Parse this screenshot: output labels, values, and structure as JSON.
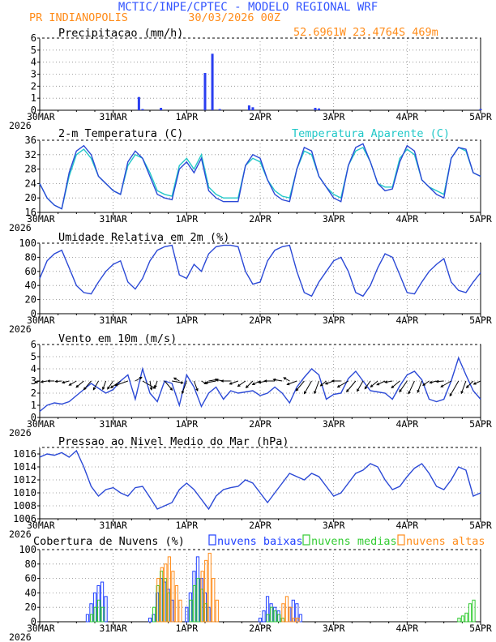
{
  "header": {
    "title": "MCTIC/INPE/CPTEC - MODELO REGIONAL WRF",
    "location": "PR INDIANOPOLIS",
    "run": "30/03/2026 00Z",
    "coords": "52.6961W 23.4764S 469m"
  },
  "colors": {
    "title": "#3355ff",
    "orange": "#ff8c1a",
    "cyan": "#22c8c8",
    "line": "#2b49d6",
    "bar": "#2a3ef0",
    "low": "#2040ff",
    "mid": "#33cc33",
    "high": "#ff8c1a"
  },
  "x_labels": [
    "30MAR",
    "31MAR",
    "1APR",
    "2APR",
    "3APR",
    "4APR",
    "5APR"
  ],
  "year_label": "2026",
  "chart_data": [
    {
      "id": "precip",
      "type": "bar",
      "title": "Precipitacao (mm/h)",
      "ylim": [
        0,
        6
      ],
      "yticks": [
        0,
        1,
        2,
        3,
        4,
        5,
        6
      ],
      "x": [
        27,
        28,
        33,
        45,
        47,
        49,
        57,
        58,
        75,
        76,
        120
      ],
      "values": [
        1.1,
        0.1,
        0.2,
        3.1,
        4.7,
        0.1,
        0.4,
        0.25,
        0.2,
        0.15,
        0.1
      ]
    },
    {
      "id": "temp",
      "type": "line",
      "title": "2-m Temperatura (C)",
      "legend": "Temperatura Aparente (C)",
      "ylim": [
        16,
        36
      ],
      "yticks": [
        16,
        20,
        24,
        28,
        32,
        36
      ],
      "x": [
        0,
        2,
        4,
        6,
        8,
        10,
        12,
        14,
        16,
        18,
        20,
        22,
        24,
        26,
        28,
        30,
        32,
        34,
        36,
        38,
        40,
        42,
        44,
        46,
        48,
        50,
        52,
        54,
        56,
        58,
        60,
        62,
        64,
        66,
        68,
        70,
        72,
        74,
        76,
        78,
        80,
        82,
        84,
        86,
        88,
        90,
        92,
        94,
        96,
        98,
        100,
        102,
        104,
        106,
        108,
        110,
        112,
        114,
        116,
        118,
        120
      ],
      "series": [
        {
          "name": "2-m Temperatura",
          "values": [
            24,
            20,
            18,
            17,
            27,
            33,
            34.5,
            32,
            26,
            24,
            22,
            21,
            30,
            33,
            31,
            26,
            21,
            20,
            19.5,
            28,
            30,
            27,
            31,
            22,
            20,
            19,
            19,
            19,
            29,
            32,
            31,
            25,
            21,
            19.5,
            19,
            28,
            34,
            33,
            26,
            23,
            20,
            19,
            29,
            34,
            35,
            30,
            24,
            22,
            22.5,
            30,
            34.5,
            33,
            25,
            23,
            21,
            20,
            31,
            34,
            33.5,
            27,
            26
          ]
        },
        {
          "name": "Temperatura Aparente",
          "values": [
            24,
            20,
            18,
            17,
            26,
            32,
            33.5,
            31,
            26,
            24,
            22,
            21,
            29,
            32,
            31,
            27,
            22,
            21,
            20.5,
            29,
            31,
            28,
            32,
            23,
            21,
            20,
            20,
            20,
            29,
            31,
            30,
            25,
            22,
            20.5,
            20,
            28,
            33,
            32,
            26,
            23,
            21,
            20,
            29,
            33,
            34,
            30,
            24,
            23,
            23,
            31,
            33.5,
            32,
            25,
            23,
            22,
            21,
            31,
            34,
            33,
            27,
            26
          ]
        }
      ]
    },
    {
      "id": "rh",
      "type": "line",
      "title": "Umidade Relativa em 2m (%)",
      "ylim": [
        0,
        100
      ],
      "yticks": [
        0,
        20,
        40,
        60,
        80,
        100
      ],
      "x": [
        0,
        2,
        4,
        6,
        8,
        10,
        12,
        14,
        16,
        18,
        20,
        22,
        24,
        26,
        28,
        30,
        32,
        34,
        36,
        38,
        40,
        42,
        44,
        46,
        48,
        50,
        52,
        54,
        56,
        58,
        60,
        62,
        64,
        66,
        68,
        70,
        72,
        74,
        76,
        78,
        80,
        82,
        84,
        86,
        88,
        90,
        92,
        94,
        96,
        98,
        100,
        102,
        104,
        106,
        108,
        110,
        112,
        114,
        116,
        118,
        120
      ],
      "series": [
        {
          "name": "Umidade Relativa",
          "values": [
            50,
            75,
            85,
            90,
            65,
            40,
            30,
            28,
            45,
            60,
            70,
            75,
            45,
            35,
            50,
            75,
            90,
            95,
            97,
            55,
            50,
            70,
            60,
            85,
            95,
            97,
            97,
            95,
            60,
            42,
            45,
            75,
            90,
            95,
            97,
            60,
            30,
            25,
            45,
            60,
            75,
            80,
            60,
            30,
            25,
            40,
            65,
            85,
            80,
            55,
            30,
            28,
            45,
            60,
            70,
            78,
            45,
            33,
            30,
            45,
            58
          ]
        }
      ]
    },
    {
      "id": "wind",
      "type": "line",
      "title": "Vento em 10m (m/s)",
      "ylim": [
        0,
        6
      ],
      "yticks": [
        0,
        1,
        2,
        3,
        4,
        5,
        6
      ],
      "x": [
        0,
        2,
        4,
        6,
        8,
        10,
        12,
        14,
        16,
        18,
        20,
        22,
        24,
        26,
        28,
        30,
        32,
        34,
        36,
        38,
        40,
        42,
        44,
        46,
        48,
        50,
        52,
        54,
        56,
        58,
        60,
        62,
        64,
        66,
        68,
        70,
        72,
        74,
        76,
        78,
        80,
        82,
        84,
        86,
        88,
        90,
        92,
        94,
        96,
        98,
        100,
        102,
        104,
        106,
        108,
        110,
        112,
        114,
        116,
        118,
        120
      ],
      "series": [
        {
          "name": "Velocidade",
          "values": [
            0.5,
            1,
            1.2,
            1.1,
            1.3,
            1.8,
            2.3,
            2.8,
            2.4,
            2,
            2.3,
            3,
            3.5,
            1.5,
            4,
            2,
            1.3,
            3,
            2.8,
            1,
            3.5,
            2.5,
            0.9,
            2,
            2.5,
            1.5,
            2.2,
            2,
            2.1,
            2.2,
            1.8,
            2,
            2.5,
            2,
            1.2,
            2.5,
            3.3,
            4,
            3.5,
            1.5,
            1.9,
            2,
            3.2,
            3.8,
            3,
            2.2,
            2.1,
            2,
            1.5,
            2.6,
            3.5,
            3.8,
            3.1,
            1.5,
            1.3,
            1.5,
            3,
            4.9,
            3.5,
            2.2,
            1.5
          ]
        }
      ],
      "arrow_dirs": [
        250,
        260,
        270,
        265,
        255,
        240,
        230,
        220,
        210,
        200,
        215,
        235,
        250,
        60,
        120,
        170,
        200,
        140,
        100,
        300,
        200,
        160,
        120,
        80,
        260,
        280,
        270,
        250,
        235,
        225,
        245,
        260,
        270,
        280,
        300,
        250,
        220,
        210,
        200,
        230,
        250,
        270,
        240,
        220,
        210,
        215,
        230,
        245,
        260,
        230,
        215,
        205,
        200,
        235,
        255,
        265,
        240,
        210,
        200,
        225,
        245
      ]
    },
    {
      "id": "slp",
      "type": "line",
      "title": "Pressao ao Nivel Medio do Mar (hPa)",
      "ylim": [
        1006,
        1017
      ],
      "yticks": [
        1006,
        1008,
        1010,
        1012,
        1014,
        1016
      ],
      "x": [
        0,
        2,
        4,
        6,
        8,
        10,
        12,
        14,
        16,
        18,
        20,
        22,
        24,
        26,
        28,
        30,
        32,
        34,
        36,
        38,
        40,
        42,
        44,
        46,
        48,
        50,
        52,
        54,
        56,
        58,
        60,
        62,
        64,
        66,
        68,
        70,
        72,
        74,
        76,
        78,
        80,
        82,
        84,
        86,
        88,
        90,
        92,
        94,
        96,
        98,
        100,
        102,
        104,
        106,
        108,
        110,
        112,
        114,
        116,
        118,
        120
      ],
      "series": [
        {
          "name": "PNMM",
          "values": [
            1015.5,
            1016,
            1015.8,
            1016.2,
            1015.5,
            1016.5,
            1014,
            1011,
            1009.5,
            1010.5,
            1010.8,
            1010,
            1009.5,
            1010.8,
            1011,
            1009.3,
            1007.5,
            1008,
            1008.5,
            1010.5,
            1011.5,
            1010.5,
            1009,
            1007.5,
            1009.5,
            1010.5,
            1010.8,
            1011,
            1012,
            1011.5,
            1010,
            1008.5,
            1010,
            1011.5,
            1013,
            1012.5,
            1012,
            1013,
            1012.5,
            1011,
            1009.5,
            1010,
            1011.5,
            1013,
            1013.5,
            1014.5,
            1014,
            1012,
            1010.5,
            1011,
            1012.5,
            1013.8,
            1014.5,
            1013,
            1011,
            1010.5,
            1012,
            1014,
            1013.5,
            1009.5,
            1010
          ]
        }
      ]
    },
    {
      "id": "clouds",
      "type": "bar",
      "title": "Cobertura de Nuvens (%)",
      "ylim": [
        0,
        100
      ],
      "yticks": [
        0,
        20,
        40,
        60,
        80,
        100
      ],
      "legend": [
        "nuvens baixas",
        "nuvens medias",
        "nuvens altas"
      ],
      "series": [
        {
          "name": "nuvens baixas",
          "x": [
            13,
            14,
            15,
            16,
            17,
            18,
            30,
            31,
            32,
            33,
            34,
            35,
            36,
            40,
            41,
            42,
            43,
            44,
            45,
            46,
            60,
            61,
            62,
            63,
            64,
            65,
            68,
            69,
            70,
            71
          ],
          "values": [
            10,
            25,
            40,
            50,
            55,
            35,
            5,
            10,
            40,
            60,
            55,
            45,
            30,
            20,
            40,
            70,
            90,
            60,
            40,
            20,
            5,
            15,
            35,
            25,
            20,
            15,
            20,
            30,
            25,
            10
          ]
        },
        {
          "name": "nuvens medias",
          "x": [
            14,
            15,
            16,
            17,
            31,
            32,
            33,
            34,
            35,
            41,
            42,
            43,
            44,
            45,
            62,
            63,
            64,
            65,
            66,
            114,
            115,
            116,
            117,
            118
          ],
          "values": [
            10,
            20,
            30,
            20,
            20,
            50,
            70,
            60,
            40,
            30,
            50,
            60,
            45,
            25,
            10,
            20,
            15,
            10,
            5,
            5,
            8,
            12,
            25,
            30
          ]
        },
        {
          "name": "nuvens altas",
          "x": [
            32,
            33,
            34,
            35,
            36,
            37,
            38,
            44,
            45,
            46,
            47,
            48,
            66,
            67,
            68,
            69,
            70
          ],
          "values": [
            60,
            75,
            80,
            90,
            70,
            50,
            30,
            70,
            85,
            95,
            60,
            30,
            25,
            35,
            20,
            5,
            5
          ]
        }
      ]
    }
  ]
}
